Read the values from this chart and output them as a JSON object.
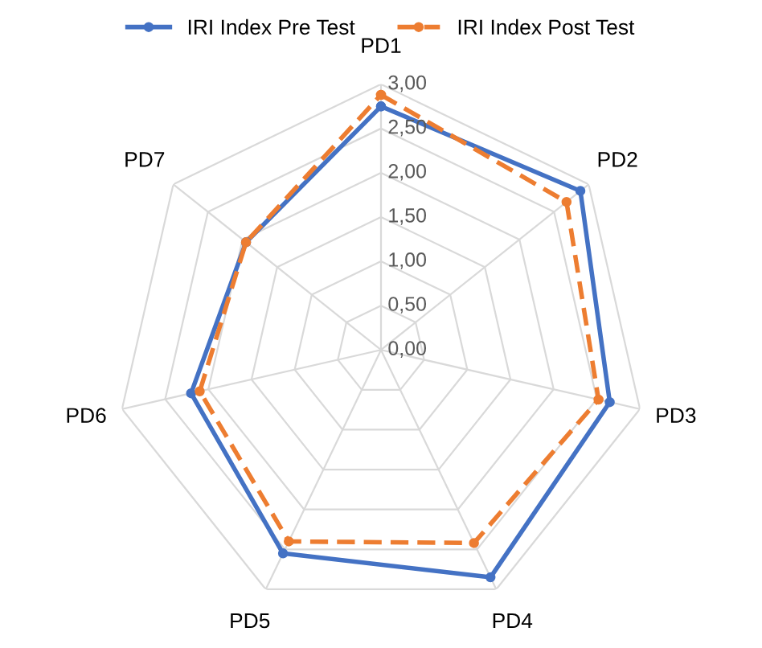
{
  "chart_data": {
    "type": "radar",
    "categories": [
      "PD1",
      "PD2",
      "PD3",
      "PD4",
      "PD5",
      "PD6",
      "PD7"
    ],
    "series": [
      {
        "name": "IRI Index Pre Test",
        "color": "#4472c4",
        "line_style": "solid",
        "values": [
          2.75,
          2.88,
          2.65,
          2.85,
          2.55,
          2.2,
          1.95
        ]
      },
      {
        "name": "IRI Index Post Test",
        "color": "#ed7d31",
        "line_style": "dashed",
        "values": [
          2.88,
          2.68,
          2.52,
          2.42,
          2.4,
          2.1,
          1.95
        ]
      }
    ],
    "ylim": [
      0,
      3
    ],
    "yticks": [
      {
        "value": 0,
        "label": "0,00"
      },
      {
        "value": 0.5,
        "label": "0,50"
      },
      {
        "value": 1,
        "label": "1,00"
      },
      {
        "value": 1.5,
        "label": "1,50"
      },
      {
        "value": 2,
        "label": "2,00"
      },
      {
        "value": 2.5,
        "label": "2,50"
      },
      {
        "value": 3,
        "label": "3,00"
      }
    ],
    "grid": true,
    "legend": "top",
    "marker": "circle"
  }
}
